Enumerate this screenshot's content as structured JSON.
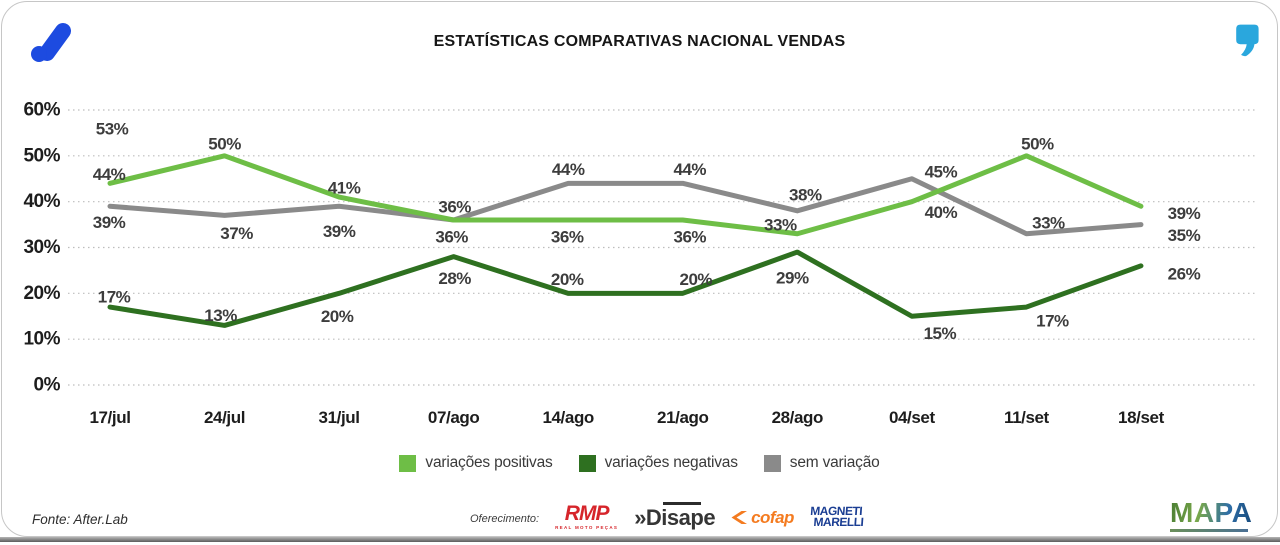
{
  "header": {
    "title": "ESTATÍSTICAS COMPARATIVAS NACIONAL VENDAS"
  },
  "chart_data": {
    "type": "line",
    "title": "ESTATÍSTICAS COMPARATIVAS NACIONAL VENDAS",
    "categories": [
      "17/jul",
      "24/jul",
      "31/jul",
      "07/ago",
      "14/ago",
      "21/ago",
      "28/ago",
      "04/set",
      "11/set",
      "18/set"
    ],
    "series": [
      {
        "name": "variações positivas",
        "color": "#6ebe46",
        "values": [
          44,
          50,
          41,
          36,
          36,
          36,
          33,
          40,
          50,
          39
        ]
      },
      {
        "name": "variações negativas",
        "color": "#2e7020",
        "values": [
          17,
          13,
          20,
          28,
          20,
          20,
          29,
          15,
          17,
          26
        ]
      },
      {
        "name": "sem variação",
        "color": "#8a8a8a",
        "values": [
          39,
          37,
          39,
          36,
          44,
          44,
          38,
          45,
          33,
          35
        ]
      }
    ],
    "y_ticks": [
      "0%",
      "10%",
      "20%",
      "30%",
      "40%",
      "50%",
      "60%"
    ],
    "ylim": [
      0,
      60
    ],
    "grid": "dotted-horizontal",
    "legend_position": "bottom",
    "annotations": [
      {
        "text": "53%",
        "near_category": "17/jul"
      }
    ]
  },
  "footer": {
    "source": "Fonte: After.Lab",
    "offering_label": "Oferecimento:",
    "sponsors": {
      "rmp": {
        "name": "RMP",
        "tagline": "REAL MOTO PEÇAS"
      },
      "disape": {
        "name": "»Disape"
      },
      "cofap": {
        "name": "cofap"
      },
      "magneti": {
        "line1": "MAGNETI",
        "line2": "MARELLI"
      }
    },
    "mapa": {
      "name": "MAPA"
    }
  },
  "colors": {
    "brand_blue": "#1d4be0",
    "quote_cyan": "#2aa7dd",
    "rmp_red": "#d6252b",
    "disape_dark": "#353535",
    "cofap_orange": "#f47b20",
    "magneti_blue": "#1b3e93",
    "grid_gray": "#bdbdbd",
    "label_dark": "#3d3d3d"
  }
}
